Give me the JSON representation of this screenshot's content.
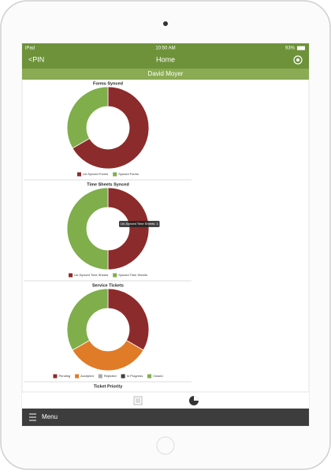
{
  "status_bar": {
    "carrier": "iPad",
    "time": "10:50 AM",
    "battery": "93%"
  },
  "nav": {
    "back": "<PIN",
    "title": "Home"
  },
  "user": "David Moyer",
  "charts": [
    {
      "type": "donut",
      "title": "Forms Synced",
      "series": [
        {
          "name": "Un-Synced Forms",
          "color": "#8c2b2b",
          "value": 2
        },
        {
          "name": "Synced Forms",
          "color": "#7fae4b",
          "value": 1
        }
      ]
    },
    {
      "type": "donut",
      "title": "Time Sheets Synced",
      "series": [
        {
          "name": "Un-Synced Time Sheets",
          "color": "#8c2b2b",
          "value": 1
        },
        {
          "name": "Synced Time Sheets",
          "color": "#7fae4b",
          "value": 1
        }
      ],
      "tooltip": "Un-Synced Time Sheets: 1"
    },
    {
      "type": "donut",
      "title": "Service Tickets",
      "series": [
        {
          "name": "Pending",
          "color": "#8c2b2b",
          "value": 1
        },
        {
          "name": "Accepted",
          "color": "#e07b27",
          "value": 1
        },
        {
          "name": "Rejected",
          "color": "#a8a8a8",
          "value": 0
        },
        {
          "name": "In Progress",
          "color": "#3f3f3f",
          "value": 0
        },
        {
          "name": "Closed",
          "color": "#7fae4b",
          "value": 1
        }
      ]
    },
    {
      "title": "Ticket Priority"
    }
  ],
  "menu": "Menu"
}
